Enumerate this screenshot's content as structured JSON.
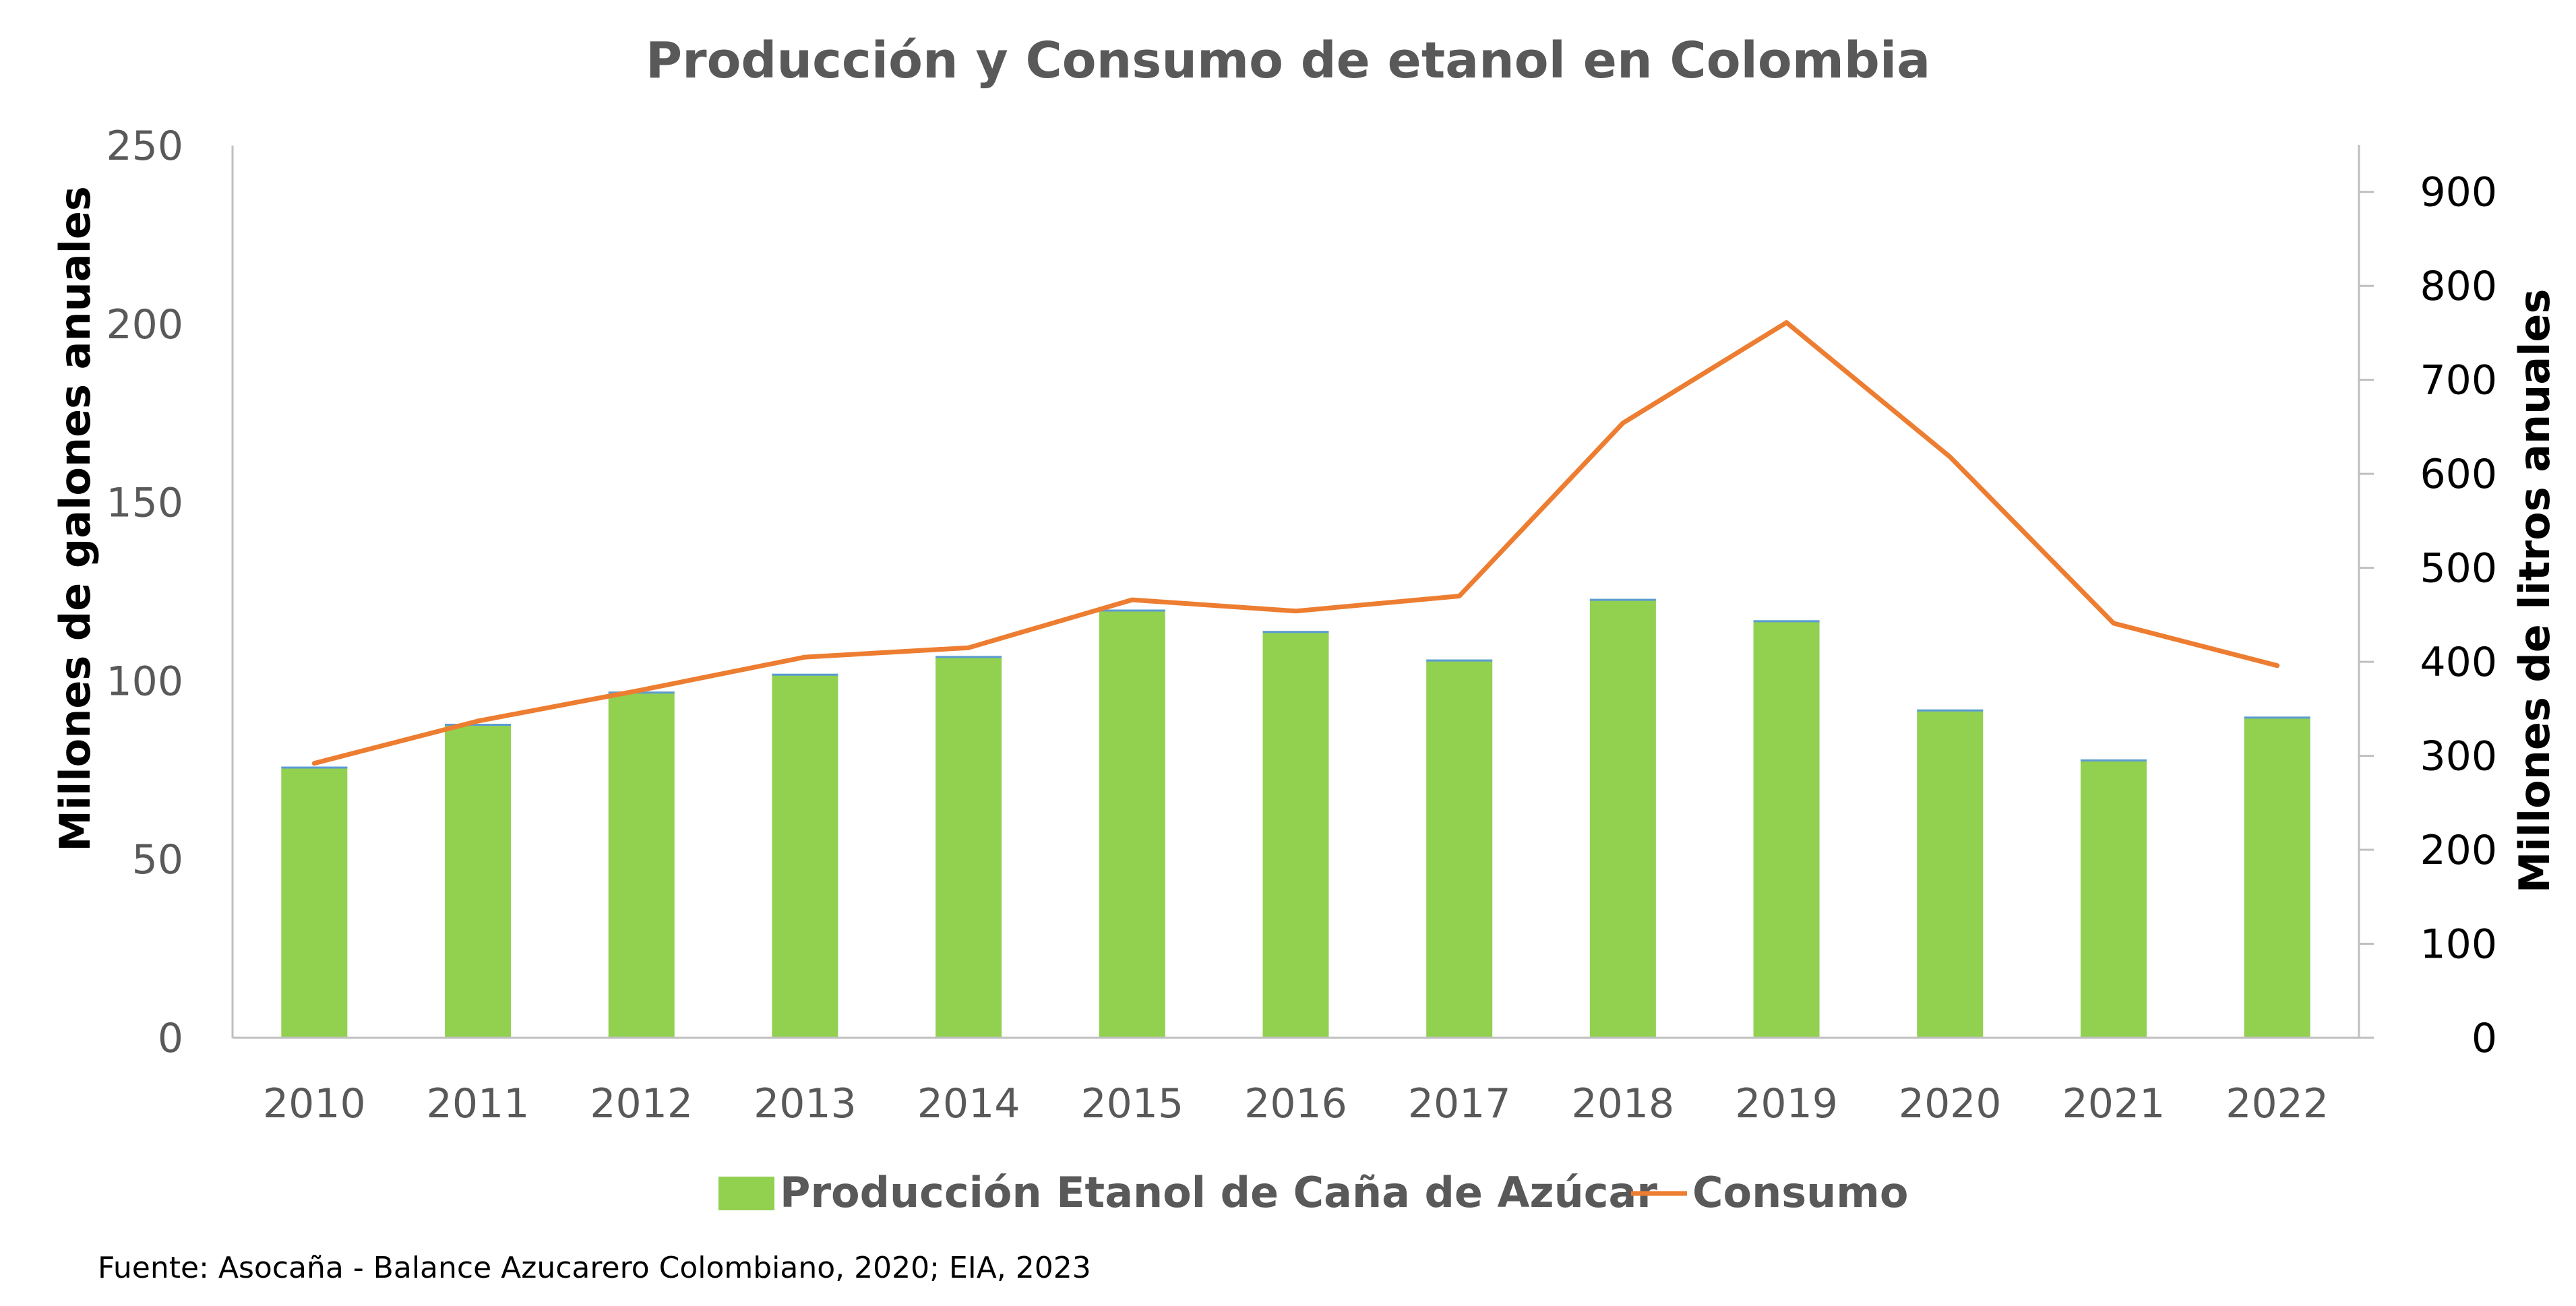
{
  "chart_data": {
    "type": "bar",
    "title": "Producción y Consumo de etanol en Colombia",
    "categories": [
      "2010",
      "2011",
      "2012",
      "2013",
      "2014",
      "2015",
      "2016",
      "2017",
      "2018",
      "2019",
      "2020",
      "2021",
      "2022"
    ],
    "series": [
      {
        "name": "Producción Etanol de Caña de Azúcar",
        "type": "bar",
        "axis": "left",
        "color": "#92D050",
        "values": [
          76,
          88,
          97,
          102,
          107,
          120,
          114,
          106,
          123,
          117,
          92,
          78,
          90
        ]
      },
      {
        "name": "Consumo",
        "type": "line",
        "axis": "right",
        "color": "#ED7D31",
        "values": [
          292,
          337,
          370,
          405,
          415,
          466,
          454,
          470,
          654,
          761,
          618,
          441,
          396
        ]
      }
    ],
    "ylabel_left": "Millones de galones anuales",
    "ylabel_right": "Millones de litros anuales",
    "ylim_left": [
      0,
      250
    ],
    "ylim_right": [
      0,
      950
    ],
    "yticks_left": [
      0,
      50,
      100,
      150,
      200,
      250
    ],
    "yticks_right": [
      0,
      100,
      200,
      300,
      400,
      500,
      600,
      700,
      800,
      900
    ],
    "grid": false,
    "legend_position": "bottom",
    "source_note": "Fuente: Asocaña - Balance Azucarero Colombiano, 2020; EIA, 2023"
  }
}
